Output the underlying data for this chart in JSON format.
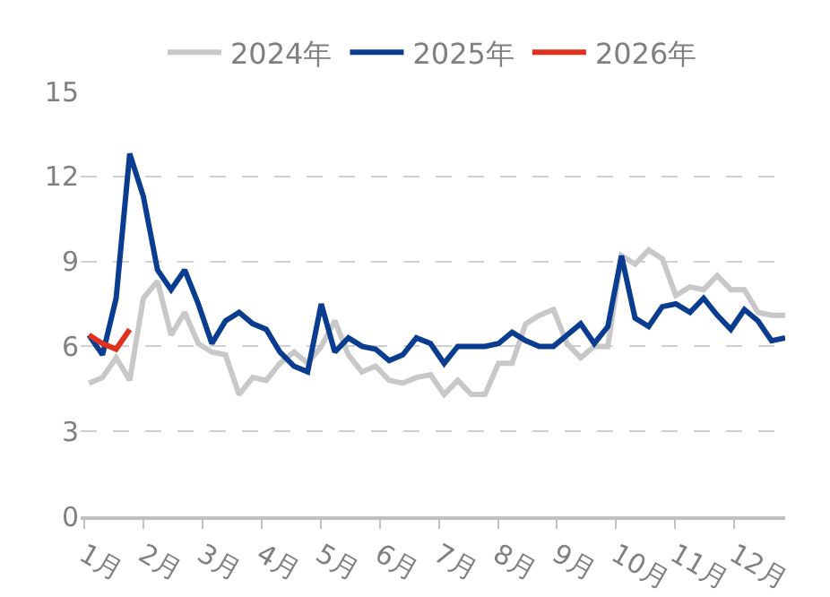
{
  "chart_data": {
    "type": "line",
    "x": [
      1.08,
      1.31,
      1.54,
      1.77,
      2.0,
      2.24,
      2.47,
      2.7,
      2.93,
      3.16,
      3.39,
      3.62,
      3.85,
      4.08,
      4.31,
      4.55,
      4.78,
      5.01,
      5.24,
      5.47,
      5.7,
      5.93,
      6.16,
      6.39,
      6.62,
      6.86,
      7.09,
      7.32,
      7.55,
      7.78,
      8.01,
      8.24,
      8.47,
      8.7,
      8.94,
      9.17,
      9.4,
      9.63,
      9.86,
      10.09,
      10.32,
      10.55,
      10.78,
      11.01,
      11.25,
      11.48,
      11.71,
      11.94,
      12.17,
      12.4,
      12.63,
      12.86
    ],
    "series": [
      {
        "name": "2024年",
        "color": "#c8c8c8",
        "values": [
          4.7,
          4.9,
          5.6,
          4.8,
          7.7,
          8.3,
          6.4,
          7.2,
          6.1,
          5.8,
          5.7,
          4.3,
          4.9,
          4.8,
          5.4,
          5.8,
          5.4,
          6.0,
          6.9,
          5.7,
          5.1,
          5.3,
          4.8,
          4.7,
          4.9,
          5.0,
          4.3,
          4.8,
          4.3,
          4.3,
          5.4,
          5.4,
          6.8,
          7.1,
          7.3,
          6.1,
          5.6,
          6.0,
          6.0,
          9.2,
          8.9,
          9.4,
          9.1,
          7.8,
          8.1,
          8.0,
          8.5,
          8.0,
          8.0,
          7.2,
          7.1,
          7.1
        ]
      },
      {
        "name": "2025年",
        "color": "#0a3d8f",
        "values": [
          6.4,
          5.7,
          7.7,
          12.8,
          11.3,
          8.7,
          8.0,
          8.7,
          7.5,
          6.1,
          6.9,
          7.2,
          6.8,
          6.6,
          5.8,
          5.3,
          5.1,
          7.5,
          5.8,
          6.3,
          6.0,
          5.9,
          5.5,
          5.7,
          6.3,
          6.1,
          5.4,
          6.0,
          6.0,
          6.0,
          6.1,
          6.5,
          6.2,
          6.0,
          6.0,
          6.4,
          6.8,
          6.1,
          6.7,
          9.2,
          7.0,
          6.7,
          7.4,
          7.5,
          7.2,
          7.7,
          7.1,
          6.6,
          7.3,
          6.9,
          6.2,
          6.3
        ]
      },
      {
        "name": "2026年",
        "color": "#e0301e",
        "x": [
          1.08,
          1.31,
          1.54,
          1.77
        ],
        "values": [
          6.4,
          6.1,
          5.9,
          6.6
        ]
      }
    ],
    "xlim": [
      0.94,
      12.86
    ],
    "xticks": [
      {
        "value": 1,
        "label": "1月"
      },
      {
        "value": 2,
        "label": "2月"
      },
      {
        "value": 3,
        "label": "3月"
      },
      {
        "value": 4,
        "label": "4月"
      },
      {
        "value": 5,
        "label": "5月"
      },
      {
        "value": 6,
        "label": "6月"
      },
      {
        "value": 7,
        "label": "7月"
      },
      {
        "value": 8,
        "label": "8月"
      },
      {
        "value": 9,
        "label": "9月"
      },
      {
        "value": 10,
        "label": "10月"
      },
      {
        "value": 11,
        "label": "11月"
      },
      {
        "value": 12,
        "label": "12月"
      }
    ],
    "ylim": [
      0,
      15
    ],
    "yticks": [
      0,
      3,
      6,
      9,
      12,
      15
    ],
    "grid": "y",
    "legend": "top",
    "marker": "none",
    "line_style": "solid"
  }
}
